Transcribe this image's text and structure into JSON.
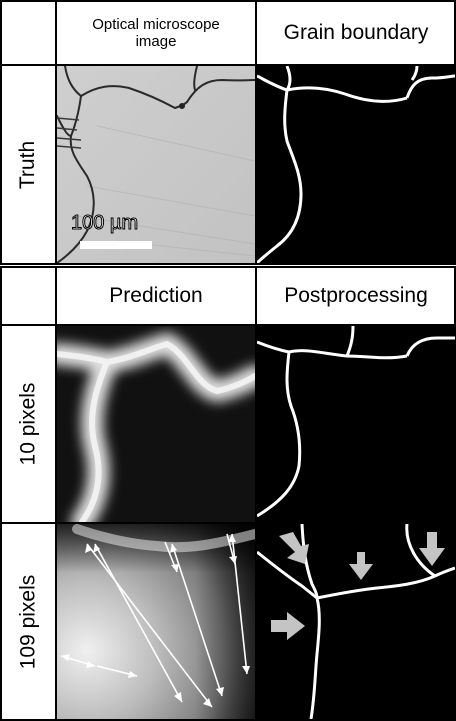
{
  "top_section": {
    "col1_header": "Optical microscope\nimage",
    "col2_header": "Grain boundary",
    "row_label": "Truth",
    "scale_bar_label": "100 µm"
  },
  "bottom_section": {
    "col1_header": "Prediction",
    "col2_header": "Postprocessing",
    "rows": [
      {
        "label": "10 pixels"
      },
      {
        "label": "109 pixels"
      }
    ]
  },
  "colors": {
    "grid_line": "#000000",
    "boundary_line": "#ffffff",
    "arrow_fill": "#bfbfbf",
    "micro_bg": "#c9c9c9"
  }
}
